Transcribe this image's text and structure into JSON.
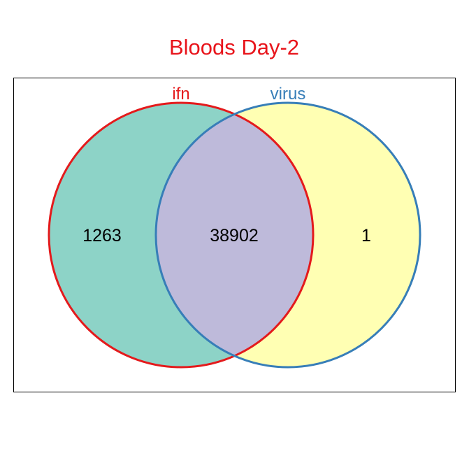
{
  "title": "Bloods Day-2",
  "colors": {
    "title": "#e8141b",
    "set_a_fill": "#8dd3c7",
    "set_b_fill": "#ffffb3",
    "overlap_fill": "#bebada",
    "set_a_border": "#e41a1c",
    "set_b_border": "#377eb8",
    "frame": "#000000"
  },
  "sets": [
    {
      "name": "ifn",
      "only_count": "1263"
    },
    {
      "name": "virus",
      "only_count": "1"
    }
  ],
  "intersection_count": "38902"
}
